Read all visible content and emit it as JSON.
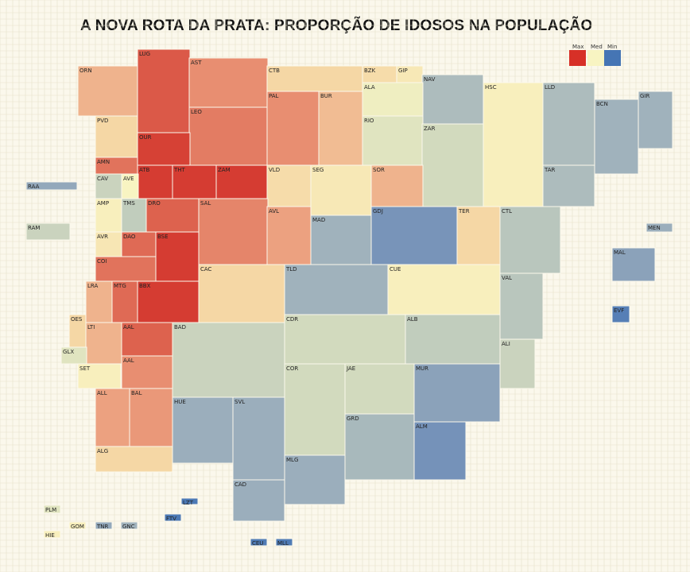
{
  "title": "A NOVA ROTA DA PRATA: PROPORÇÃO DE IDOSOS NA POPULAÇÃO",
  "legend": {
    "max_label": "Max",
    "med_label": "Med",
    "min_label": "Min",
    "max_color": "#d73027",
    "med_color": "#f8f4c2",
    "min_color": "#4575b4"
  },
  "chart_data": {
    "type": "heatmap",
    "title": "A NOVA ROTA DA PRATA: PROPORÇÃO DE IDOSOS NA POPULAÇÃO",
    "value_scale": "0 = Min, 0.5 = Med, 1 = Max (relative share of elderly)",
    "regions": [
      {
        "code": "ORN",
        "value": 0.7
      },
      {
        "code": "LUG",
        "value": 0.9
      },
      {
        "code": "AST",
        "value": 0.78
      },
      {
        "code": "CTB",
        "value": 0.62
      },
      {
        "code": "BZK",
        "value": 0.6
      },
      {
        "code": "GIP",
        "value": 0.55
      },
      {
        "code": "NAV",
        "value": 0.33
      },
      {
        "code": "ALA",
        "value": 0.48
      },
      {
        "code": "PVD",
        "value": 0.62
      },
      {
        "code": "LEO",
        "value": 0.82
      },
      {
        "code": "PAL",
        "value": 0.78
      },
      {
        "code": "BUR",
        "value": 0.68
      },
      {
        "code": "RIO",
        "value": 0.45
      },
      {
        "code": "ZAR",
        "value": 0.42
      },
      {
        "code": "HSC",
        "value": 0.52
      },
      {
        "code": "LLD",
        "value": 0.33
      },
      {
        "code": "BCN",
        "value": 0.3
      },
      {
        "code": "GIR",
        "value": 0.3
      },
      {
        "code": "OUR",
        "value": 0.96
      },
      {
        "code": "AMN",
        "value": 0.84
      },
      {
        "code": "ATB",
        "value": 0.97
      },
      {
        "code": "THT",
        "value": 0.97
      },
      {
        "code": "ZAM",
        "value": 0.97
      },
      {
        "code": "VLD",
        "value": 0.6
      },
      {
        "code": "SEG",
        "value": 0.55
      },
      {
        "code": "SOR",
        "value": 0.7
      },
      {
        "code": "TAR",
        "value": 0.33
      },
      {
        "code": "RAA",
        "value": 0.25
      },
      {
        "code": "CAV",
        "value": 0.4
      },
      {
        "code": "AVE",
        "value": 0.5
      },
      {
        "code": "AMP",
        "value": 0.52
      },
      {
        "code": "TMS",
        "value": 0.38
      },
      {
        "code": "DRO",
        "value": 0.88
      },
      {
        "code": "SAL",
        "value": 0.8
      },
      {
        "code": "AVL",
        "value": 0.74
      },
      {
        "code": "MAD",
        "value": 0.3
      },
      {
        "code": "GDJ",
        "value": 0.15
      },
      {
        "code": "TER",
        "value": 0.62
      },
      {
        "code": "CTL",
        "value": 0.36
      },
      {
        "code": "RAM",
        "value": 0.4
      },
      {
        "code": "MEN",
        "value": 0.28
      },
      {
        "code": "AVR",
        "value": 0.56
      },
      {
        "code": "DAO",
        "value": 0.86
      },
      {
        "code": "BSE",
        "value": 0.97
      },
      {
        "code": "COI",
        "value": 0.84
      },
      {
        "code": "MAL",
        "value": 0.22
      },
      {
        "code": "CAC",
        "value": 0.62
      },
      {
        "code": "TLD",
        "value": 0.3
      },
      {
        "code": "CUE",
        "value": 0.52
      },
      {
        "code": "LRA",
        "value": 0.7
      },
      {
        "code": "MTG",
        "value": 0.86
      },
      {
        "code": "BBX",
        "value": 0.97
      },
      {
        "code": "VAL",
        "value": 0.36
      },
      {
        "code": "EVF",
        "value": 0.05
      },
      {
        "code": "OES",
        "value": 0.62
      },
      {
        "code": "LTI",
        "value": 0.7
      },
      {
        "code": "AAL",
        "value": 0.88
      },
      {
        "code": "BAD",
        "value": 0.4
      },
      {
        "code": "CDR",
        "value": 0.42
      },
      {
        "code": "ALB",
        "value": 0.38
      },
      {
        "code": "ALI",
        "value": 0.4
      },
      {
        "code": "GLX",
        "value": 0.45
      },
      {
        "code": "AAL",
        "value": 0.78
      },
      {
        "code": "SET",
        "value": 0.52
      },
      {
        "code": "COR",
        "value": 0.42
      },
      {
        "code": "JAE",
        "value": 0.42
      },
      {
        "code": "MUR",
        "value": 0.22
      },
      {
        "code": "ALL",
        "value": 0.74
      },
      {
        "code": "BAL",
        "value": 0.76
      },
      {
        "code": "HUE",
        "value": 0.28
      },
      {
        "code": "SVL",
        "value": 0.28
      },
      {
        "code": "GRD",
        "value": 0.32
      },
      {
        "code": "ALM",
        "value": 0.14
      },
      {
        "code": "ALG",
        "value": 0.62
      },
      {
        "code": "MLG",
        "value": 0.28
      },
      {
        "code": "CAD",
        "value": 0.28
      },
      {
        "code": "LZT",
        "value": 0.02
      },
      {
        "code": "PLM",
        "value": 0.45
      },
      {
        "code": "FTV",
        "value": 0.02
      },
      {
        "code": "GOM",
        "value": 0.52
      },
      {
        "code": "TNR",
        "value": 0.25
      },
      {
        "code": "GNC",
        "value": 0.3
      },
      {
        "code": "HIE",
        "value": 0.52
      },
      {
        "code": "CEU",
        "value": 0.03
      },
      {
        "code": "MLL",
        "value": 0.03
      }
    ]
  }
}
